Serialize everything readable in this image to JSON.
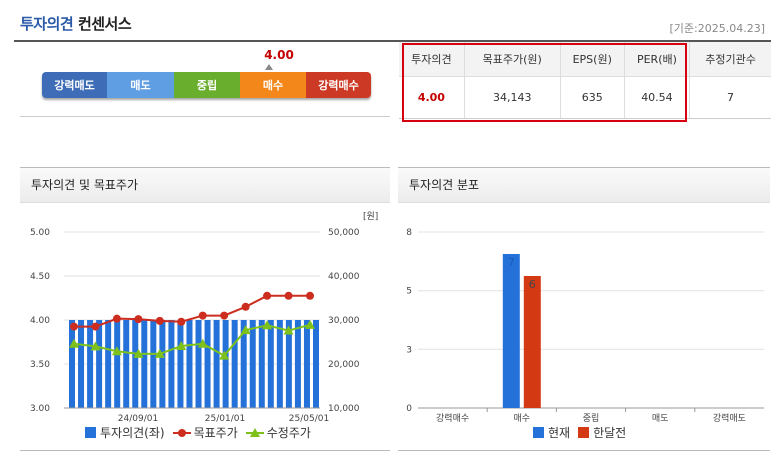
{
  "header": {
    "title_strong": "투자의견",
    "title_rest": "컨센서스",
    "as_of": "[기준:2025.04.23]"
  },
  "gauge": {
    "score": "4.00",
    "segments": [
      {
        "label": "강력매도",
        "color": "#3e6cb6"
      },
      {
        "label": "매도",
        "color": "#5f9ee3"
      },
      {
        "label": "중립",
        "color": "#6aae2e"
      },
      {
        "label": "매수",
        "color": "#f3871a"
      },
      {
        "label": "강력매수",
        "color": "#cc3a26"
      }
    ]
  },
  "summary": {
    "headers": [
      "투자의견",
      "목표주가(원)",
      "EPS(원)",
      "PER(배)",
      "추정기관수"
    ],
    "values": [
      "4.00",
      "34,143",
      "635",
      "40.54",
      "7"
    ]
  },
  "chart_data": [
    {
      "type": "bar",
      "title": "투자의견 및 목표주가",
      "y_right_unit": "[원]",
      "x_ticks": [
        "24/09/01",
        "25/01/01",
        "25/05/01"
      ],
      "ylim_left": [
        3.0,
        5.0
      ],
      "yticks_left": [
        "3.00",
        "3.50",
        "4.00",
        "4.50",
        "5.00"
      ],
      "ylim_right": [
        10000,
        50000
      ],
      "yticks_right": [
        "10,000",
        "20,000",
        "30,000",
        "40,000",
        "50,000"
      ],
      "grid": true,
      "series": [
        {
          "name": "투자의견(좌)",
          "kind": "bar",
          "axis": "left",
          "color": "#2472d9",
          "values": [
            4.0,
            4.0,
            4.0,
            4.0,
            4.0,
            4.0,
            4.0,
            4.0,
            4.0,
            4.0,
            4.0,
            4.0,
            4.0,
            4.0,
            4.0,
            4.0,
            4.0,
            4.0,
            4.0,
            4.0,
            4.0,
            4.0,
            4.0,
            4.0,
            4.0,
            4.0,
            4.0,
            4.0
          ]
        },
        {
          "name": "목표주가",
          "kind": "line",
          "marker": "circle",
          "axis": "right",
          "color": "#cc2d1f",
          "values": [
            28500,
            28500,
            30300,
            30200,
            29800,
            29600,
            31000,
            31000,
            33000,
            35500,
            35500,
            35500
          ]
        },
        {
          "name": "수정주가",
          "kind": "line",
          "marker": "triangle",
          "axis": "right",
          "color": "#7fc11b",
          "values": [
            24600,
            24000,
            22900,
            22300,
            22300,
            24100,
            24600,
            21900,
            27700,
            28800,
            27600,
            28900
          ]
        }
      ],
      "legend_position": "bottom"
    },
    {
      "type": "bar",
      "title": "투자의견 분포",
      "categories": [
        "강력매수",
        "매수",
        "중립",
        "매도",
        "강력매도"
      ],
      "ylim": [
        0,
        8
      ],
      "yticks": [
        "0",
        "3",
        "5",
        "8"
      ],
      "grid": true,
      "series": [
        {
          "name": "현재",
          "color": "#2472d9",
          "values": [
            0,
            7,
            0,
            0,
            0
          ]
        },
        {
          "name": "한달전",
          "color": "#d33a14",
          "values": [
            0,
            6,
            0,
            0,
            0
          ]
        }
      ],
      "data_labels": [
        "7",
        "6"
      ],
      "legend_position": "bottom"
    }
  ]
}
